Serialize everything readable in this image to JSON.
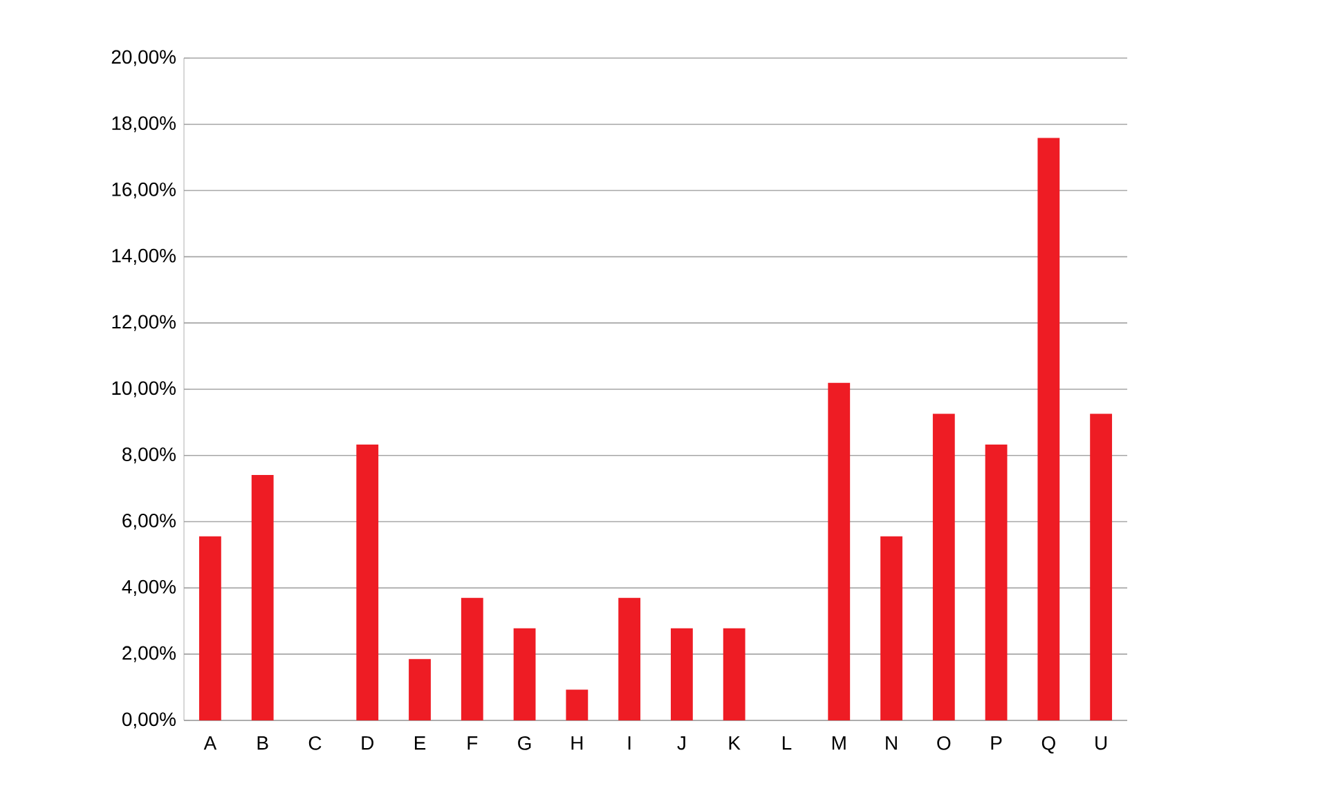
{
  "chart_data": {
    "type": "bar",
    "categories": [
      "A",
      "B",
      "C",
      "D",
      "E",
      "F",
      "G",
      "H",
      "I",
      "J",
      "K",
      "L",
      "M",
      "N",
      "O",
      "P",
      "Q",
      "U"
    ],
    "values": [
      5.56,
      7.41,
      0,
      8.33,
      1.85,
      3.7,
      2.78,
      0.93,
      3.7,
      2.78,
      2.78,
      0,
      10.19,
      5.56,
      9.26,
      8.33,
      17.59,
      9.26
    ],
    "color": "#ee1c24",
    "ylim": [
      0,
      20
    ],
    "yticks": [
      {
        "value": 0,
        "label": "0,00%"
      },
      {
        "value": 2,
        "label": "2,00%"
      },
      {
        "value": 4,
        "label": "4,00%"
      },
      {
        "value": 6,
        "label": "6,00%"
      },
      {
        "value": 8,
        "label": "8,00%"
      },
      {
        "value": 10,
        "label": "10,00%"
      },
      {
        "value": 12,
        "label": "12,00%"
      },
      {
        "value": 14,
        "label": "14,00%"
      },
      {
        "value": 16,
        "label": "16,00%"
      },
      {
        "value": 18,
        "label": "18,00%"
      },
      {
        "value": 20,
        "label": "20,00%"
      }
    ],
    "grid": "y"
  }
}
